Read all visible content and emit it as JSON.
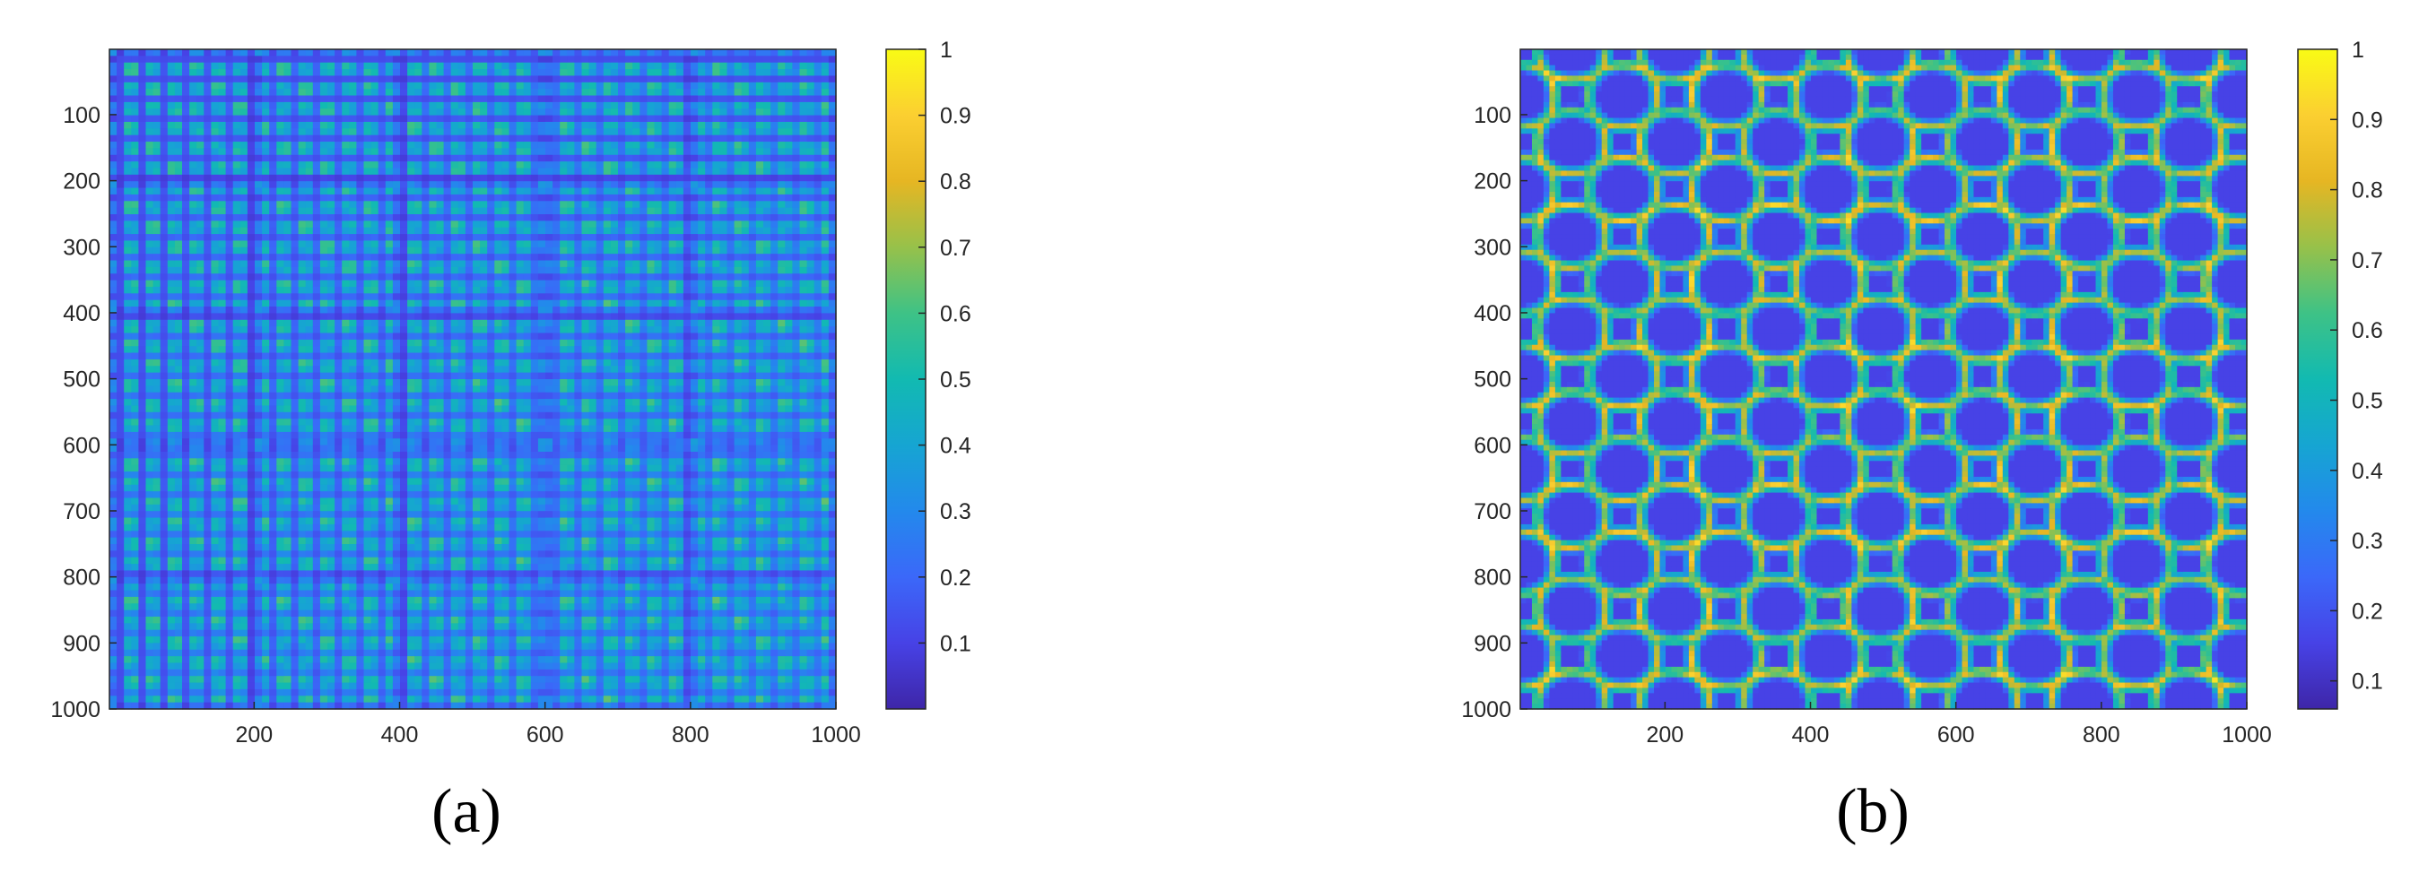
{
  "chart_data": [
    {
      "type": "heatmap",
      "panel_label": "(a)",
      "x_ticks": [
        200,
        400,
        600,
        800,
        1000
      ],
      "y_ticks": [
        100,
        200,
        300,
        400,
        500,
        600,
        700,
        800,
        900,
        1000
      ],
      "xlim": [
        1,
        1000
      ],
      "ylim": [
        1,
        1000
      ],
      "y_reversed": true,
      "colorbar": {
        "ticks": [
          "0.1",
          "0.2",
          "0.3",
          "0.4",
          "0.5",
          "0.6",
          "0.7",
          "0.8",
          "0.9",
          "1"
        ],
        "range": [
          0,
          1
        ],
        "colormap": "parula"
      },
      "pattern": "fine"
    },
    {
      "type": "heatmap",
      "panel_label": "(b)",
      "x_ticks": [
        200,
        400,
        600,
        800,
        1000
      ],
      "y_ticks": [
        100,
        200,
        300,
        400,
        500,
        600,
        700,
        800,
        900,
        1000
      ],
      "xlim": [
        1,
        1000
      ],
      "ylim": [
        1,
        1000
      ],
      "y_reversed": true,
      "colorbar": {
        "ticks": [
          "0.1",
          "0.2",
          "0.3",
          "0.4",
          "0.5",
          "0.6",
          "0.7",
          "0.8",
          "0.9",
          "1"
        ],
        "range": [
          0.06,
          1
        ],
        "colormap": "parula"
      },
      "pattern": "smooth"
    }
  ]
}
